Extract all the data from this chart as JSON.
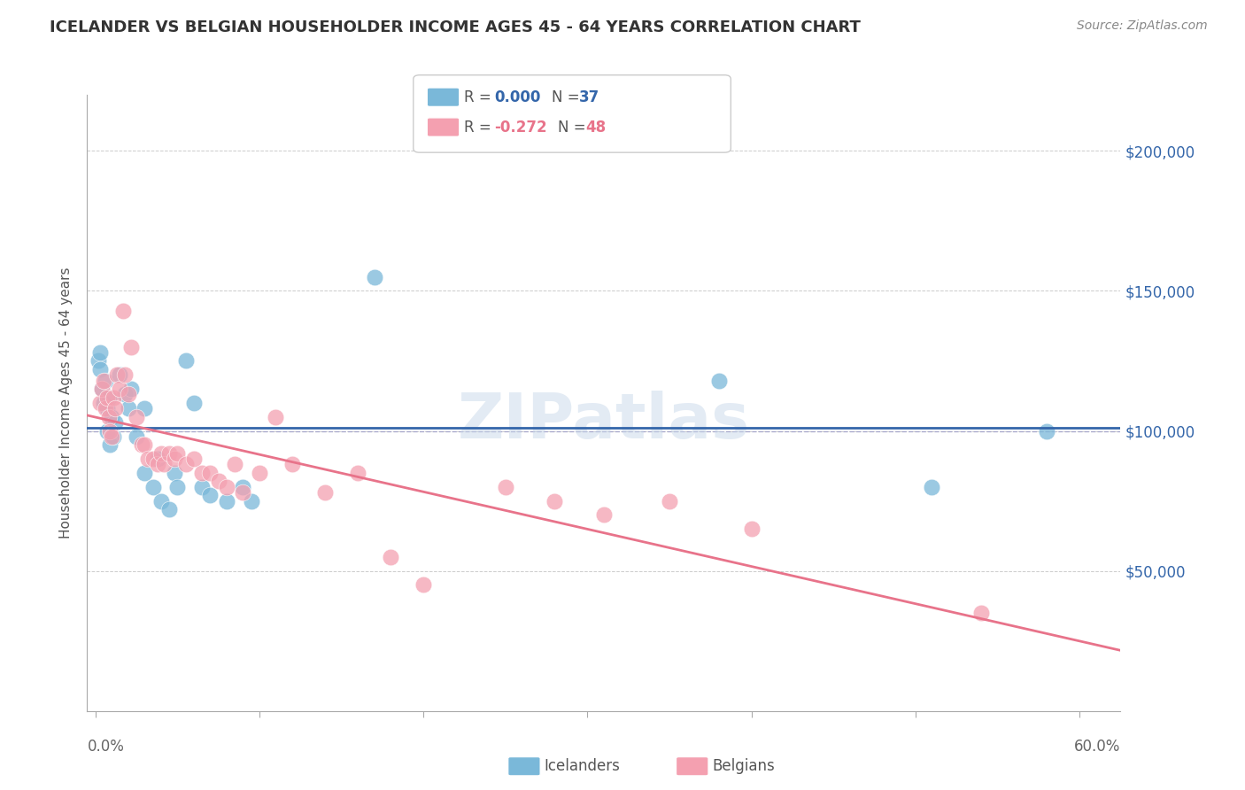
{
  "title": "ICELANDER VS BELGIAN HOUSEHOLDER INCOME AGES 45 - 64 YEARS CORRELATION CHART",
  "source": "Source: ZipAtlas.com",
  "ylabel": "Householder Income Ages 45 - 64 years",
  "ytick_labels": [
    "$50,000",
    "$100,000",
    "$150,000",
    "$200,000"
  ],
  "ytick_values": [
    50000,
    100000,
    150000,
    200000
  ],
  "ylim": [
    0,
    220000
  ],
  "xlim": [
    -0.005,
    0.625
  ],
  "icelander_color": "#7ab8d9",
  "belgian_color": "#f4a0b0",
  "line_color_icelander": "#3466aa",
  "line_color_belgian": "#e8738a",
  "watermark": "ZIPatlas",
  "icelander_x": [
    0.002,
    0.003,
    0.003,
    0.004,
    0.005,
    0.006,
    0.007,
    0.007,
    0.008,
    0.009,
    0.01,
    0.011,
    0.012,
    0.015,
    0.018,
    0.02,
    0.022,
    0.025,
    0.03,
    0.03,
    0.035,
    0.038,
    0.04,
    0.045,
    0.048,
    0.05,
    0.055,
    0.06,
    0.065,
    0.07,
    0.08,
    0.09,
    0.095,
    0.17,
    0.38,
    0.51,
    0.58
  ],
  "icelander_y": [
    125000,
    128000,
    122000,
    115000,
    110000,
    118000,
    108000,
    100000,
    112000,
    95000,
    105000,
    98000,
    103000,
    120000,
    113000,
    108000,
    115000,
    98000,
    108000,
    85000,
    80000,
    90000,
    75000,
    72000,
    85000,
    80000,
    125000,
    110000,
    80000,
    77000,
    75000,
    80000,
    75000,
    155000,
    118000,
    80000,
    100000
  ],
  "belgian_x": [
    0.003,
    0.004,
    0.005,
    0.006,
    0.007,
    0.008,
    0.009,
    0.01,
    0.011,
    0.012,
    0.013,
    0.015,
    0.017,
    0.018,
    0.02,
    0.022,
    0.025,
    0.028,
    0.03,
    0.032,
    0.035,
    0.038,
    0.04,
    0.042,
    0.045,
    0.048,
    0.05,
    0.055,
    0.06,
    0.065,
    0.07,
    0.075,
    0.08,
    0.085,
    0.09,
    0.1,
    0.11,
    0.12,
    0.14,
    0.16,
    0.18,
    0.2,
    0.25,
    0.28,
    0.31,
    0.35,
    0.4,
    0.54
  ],
  "belgian_y": [
    110000,
    115000,
    118000,
    108000,
    112000,
    105000,
    100000,
    98000,
    112000,
    108000,
    120000,
    115000,
    143000,
    120000,
    113000,
    130000,
    105000,
    95000,
    95000,
    90000,
    90000,
    88000,
    92000,
    88000,
    92000,
    90000,
    92000,
    88000,
    90000,
    85000,
    85000,
    82000,
    80000,
    88000,
    78000,
    85000,
    105000,
    88000,
    78000,
    85000,
    55000,
    45000,
    80000,
    75000,
    70000,
    75000,
    65000,
    35000
  ]
}
